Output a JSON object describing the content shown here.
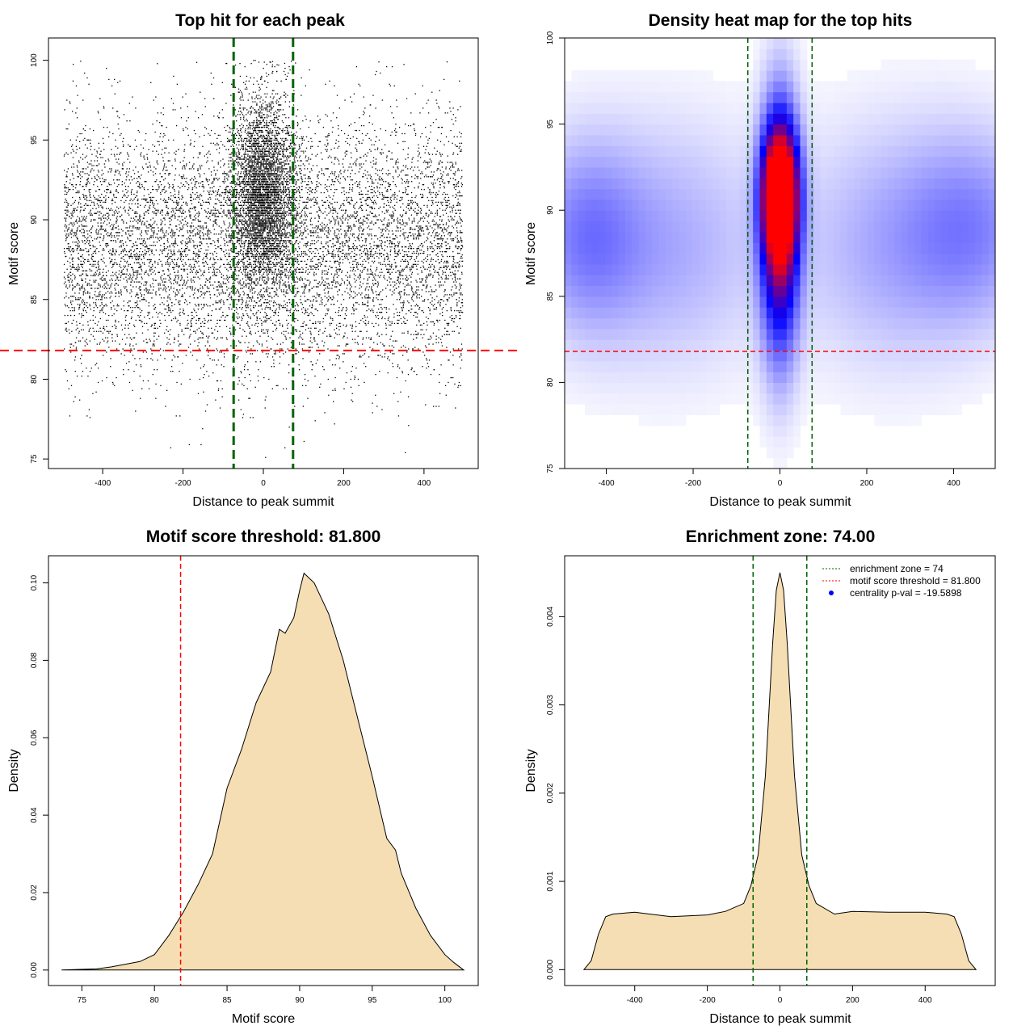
{
  "colors": {
    "green_line": "#006400",
    "red_line": "#ff0000",
    "density_fill": "#f5deb3",
    "heat_low": "#ffffff",
    "heat_mid": "#0000ff",
    "heat_high": "#ff0000",
    "legend_point": "#0000ff"
  },
  "chart_data": [
    {
      "type": "scatter",
      "title": "Top hit for each peak",
      "xlabel": "Distance to peak summit",
      "ylabel": "Motif score",
      "xlim": [
        -535,
        535
      ],
      "ylim": [
        74.4,
        101.4
      ],
      "xticks": [
        -400,
        -200,
        0,
        200,
        400
      ],
      "yticks": [
        75,
        80,
        85,
        90,
        95,
        100
      ],
      "vlines": [
        -74,
        74
      ],
      "hline": 81.8,
      "grid": false,
      "point_distribution": {
        "x_range": [
          -496,
          496
        ],
        "central_band": [
          -100,
          100
        ],
        "central_mean": 91.5,
        "background_mean": 88.5,
        "score_max": 100,
        "score_min": 75
      }
    },
    {
      "type": "heatmap",
      "title": "Density heat map for the top hits",
      "xlabel": "Distance to peak summit",
      "ylabel": "Motif score",
      "xlim": [
        -496,
        496
      ],
      "ylim": [
        75,
        100
      ],
      "xticks": [
        -400,
        -200,
        0,
        200,
        400
      ],
      "yticks": [
        75,
        80,
        85,
        90,
        95,
        100
      ],
      "vlines": [
        -74,
        74
      ],
      "hline": 81.8,
      "peak": {
        "x": 0,
        "y": 91
      },
      "grid": false
    },
    {
      "type": "area",
      "title": "Motif score threshold: 81.800",
      "xlabel": "Motif score",
      "ylabel": "Density",
      "xlim": [
        72.7,
        102.3
      ],
      "ylim": [
        -0.004,
        0.107
      ],
      "xticks": [
        75,
        80,
        85,
        90,
        95,
        100
      ],
      "yticks": [
        0.0,
        0.02,
        0.04,
        0.06,
        0.08,
        0.1
      ],
      "ytick_labels": [
        "0.00",
        "0.02",
        "0.04",
        "0.06",
        "0.08",
        "0.10"
      ],
      "vline": 81.8,
      "x": [
        73.6,
        76,
        77,
        78,
        79,
        80,
        81,
        82,
        83,
        84,
        85,
        86,
        87,
        88,
        88.6,
        89,
        89.6,
        90,
        90.3,
        91,
        92,
        93,
        94,
        95,
        96,
        96.6,
        97,
        98,
        99,
        100,
        100.6,
        101.3
      ],
      "y": [
        0.0,
        0.0003,
        0.0008,
        0.0015,
        0.0022,
        0.004,
        0.009,
        0.015,
        0.022,
        0.03,
        0.047,
        0.057,
        0.069,
        0.077,
        0.088,
        0.087,
        0.091,
        0.098,
        0.1025,
        0.1,
        0.092,
        0.08,
        0.065,
        0.05,
        0.034,
        0.031,
        0.025,
        0.016,
        0.009,
        0.004,
        0.002,
        0.0
      ],
      "grid": false
    },
    {
      "type": "area",
      "title": "Enrichment zone: 74.00",
      "xlabel": "Distance to peak summit",
      "ylabel": "Density",
      "xlim": [
        -593,
        593
      ],
      "ylim": [
        -0.00018,
        0.00469
      ],
      "xticks": [
        -400,
        -200,
        0,
        200,
        400
      ],
      "yticks": [
        0.0,
        0.001,
        0.002,
        0.003,
        0.004
      ],
      "ytick_labels": [
        "0.000",
        "0.001",
        "0.002",
        "0.003",
        "0.004"
      ],
      "vlines": [
        -74,
        74
      ],
      "x": [
        -540,
        -520,
        -500,
        -480,
        -460,
        -400,
        -300,
        -200,
        -150,
        -100,
        -80,
        -60,
        -40,
        -20,
        -10,
        0,
        10,
        20,
        40,
        60,
        80,
        100,
        150,
        200,
        300,
        400,
        460,
        480,
        500,
        520,
        540
      ],
      "y": [
        0.0,
        0.0001,
        0.0004,
        0.0006,
        0.00063,
        0.00065,
        0.0006,
        0.00062,
        0.00066,
        0.00075,
        0.00095,
        0.0013,
        0.0022,
        0.0037,
        0.0043,
        0.0045,
        0.0043,
        0.0037,
        0.0022,
        0.0013,
        0.00095,
        0.00075,
        0.00063,
        0.00066,
        0.00065,
        0.00065,
        0.00063,
        0.0006,
        0.0004,
        0.0001,
        0.0
      ],
      "legend": {
        "placement": "top-right",
        "entries": [
          {
            "label": "enrichment zone = 74",
            "style": "dotted",
            "color": "#006400"
          },
          {
            "label": "motif score threshold = 81.800",
            "style": "dotted",
            "color": "#ff0000"
          },
          {
            "label": "centrality p-val = -19.5898",
            "style": "point",
            "color": "#0000ff"
          }
        ]
      },
      "grid": false
    }
  ]
}
